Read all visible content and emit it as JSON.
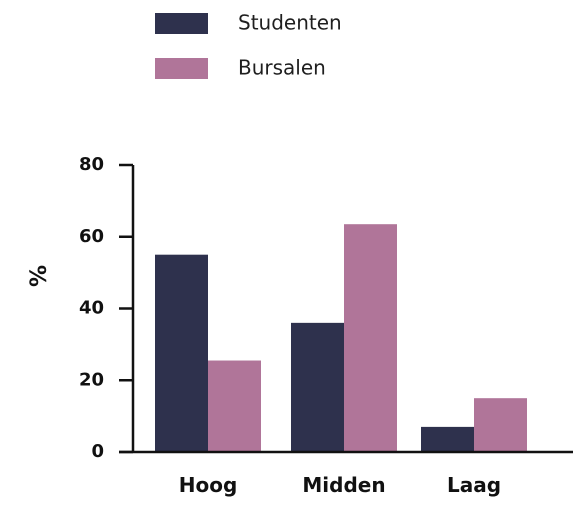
{
  "chart_data": {
    "type": "bar",
    "categories": [
      "Hoog",
      "Midden",
      "Laag"
    ],
    "series": [
      {
        "name": "Studenten",
        "color": "#2e314d",
        "values": [
          55,
          36,
          7
        ]
      },
      {
        "name": "Bursalen",
        "color": "#b07599",
        "values": [
          25.5,
          63.5,
          15
        ]
      }
    ],
    "title": "",
    "xlabel": "",
    "ylabel": "%",
    "ylim": [
      0,
      80
    ],
    "yticks": [
      0,
      20,
      40,
      60,
      80
    ],
    "grid": false,
    "legend_position": "top-left"
  }
}
